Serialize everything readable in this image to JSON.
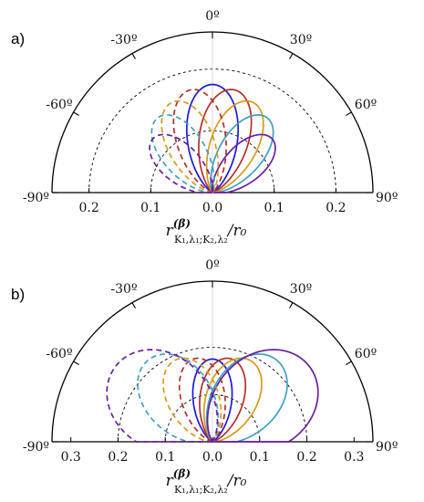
{
  "colors": {
    "blue": "#1a1ad6",
    "red": "#b0302a",
    "orange": "#d69a1c",
    "cyan": "#3ea0c4",
    "purple": "#6a1f9e",
    "frame": "#000000",
    "guide": "#000000"
  },
  "chart_data": [
    {
      "type": "polar",
      "panel_label": "a)",
      "angle_unit": "degrees",
      "angle_ticks": [
        "-90º",
        "-60º",
        "-30º",
        "0º",
        "30º",
        "60º",
        "90º"
      ],
      "radius_max": 0.26,
      "radial_ticks": [
        0.1,
        0.2
      ],
      "radial_tick_labels": [
        "0.2",
        "0.1",
        "0.0",
        "0.1",
        "0.2"
      ],
      "axis_label": "r(β)K1,λ1;K2,λ2/r0",
      "grid": "dashed semicircles at r = 0.1 and 0.2",
      "series": [
        {
          "color": "blue",
          "style": "solid",
          "peak_angle_deg": 0,
          "peak_r": 0.175,
          "width_exp": 6
        },
        {
          "color": "red",
          "style": "solid",
          "peak_angle_deg": 12,
          "peak_r": 0.17,
          "width_exp": 6
        },
        {
          "color": "orange",
          "style": "solid",
          "peak_angle_deg": 24,
          "peak_r": 0.16,
          "width_exp": 6
        },
        {
          "color": "cyan",
          "style": "solid",
          "peak_angle_deg": 36,
          "peak_r": 0.15,
          "width_exp": 6
        },
        {
          "color": "purple",
          "style": "solid",
          "peak_angle_deg": 48,
          "peak_r": 0.13,
          "width_exp": 6
        },
        {
          "color": "red",
          "style": "dashed",
          "peak_angle_deg": -12,
          "peak_r": 0.17,
          "width_exp": 6
        },
        {
          "color": "orange",
          "style": "dashed",
          "peak_angle_deg": -24,
          "peak_r": 0.16,
          "width_exp": 6
        },
        {
          "color": "cyan",
          "style": "dashed",
          "peak_angle_deg": -36,
          "peak_r": 0.15,
          "width_exp": 6
        },
        {
          "color": "purple",
          "style": "dashed",
          "peak_angle_deg": -48,
          "peak_r": 0.13,
          "width_exp": 6
        }
      ]
    },
    {
      "type": "polar",
      "panel_label": "b)",
      "angle_unit": "degrees",
      "angle_ticks": [
        "-90º",
        "-60º",
        "-30º",
        "0º",
        "30º",
        "60º",
        "90º"
      ],
      "radius_max": 0.34,
      "radial_ticks": [
        0.1,
        0.2,
        0.3
      ],
      "radial_tick_labels": [
        "0.3",
        "0.2",
        "0.1",
        "0.0",
        "0.1",
        "0.2",
        "0.3"
      ],
      "axis_label": "r(β)K1,λ1;K2,λ2/r0",
      "grid": "dashed semicircles at r = 0.1 and 0.2",
      "series": [
        {
          "color": "blue",
          "style": "solid",
          "peak_angle_deg": 0,
          "peak_r": 0.175,
          "width_exp": 6
        },
        {
          "color": "red",
          "style": "solid",
          "peak_angle_deg": 12,
          "peak_r": 0.18,
          "width_exp": 5
        },
        {
          "color": "orange",
          "style": "solid",
          "peak_angle_deg": 24,
          "peak_r": 0.19,
          "width_exp": 4
        },
        {
          "color": "cyan",
          "style": "solid",
          "peak_angle_deg": 38,
          "peak_r": 0.22,
          "width_exp": 3
        },
        {
          "color": "purple",
          "style": "solid",
          "peak_angle_deg": 52,
          "peak_r": 0.26,
          "width_exp": 2
        },
        {
          "color": "red",
          "style": "dashed",
          "peak_angle_deg": -12,
          "peak_r": 0.18,
          "width_exp": 5
        },
        {
          "color": "orange",
          "style": "dashed",
          "peak_angle_deg": -24,
          "peak_r": 0.19,
          "width_exp": 4
        },
        {
          "color": "cyan",
          "style": "dashed",
          "peak_angle_deg": -38,
          "peak_r": 0.22,
          "width_exp": 3
        },
        {
          "color": "purple",
          "style": "dashed",
          "peak_angle_deg": -52,
          "peak_r": 0.26,
          "width_exp": 2
        }
      ]
    }
  ]
}
